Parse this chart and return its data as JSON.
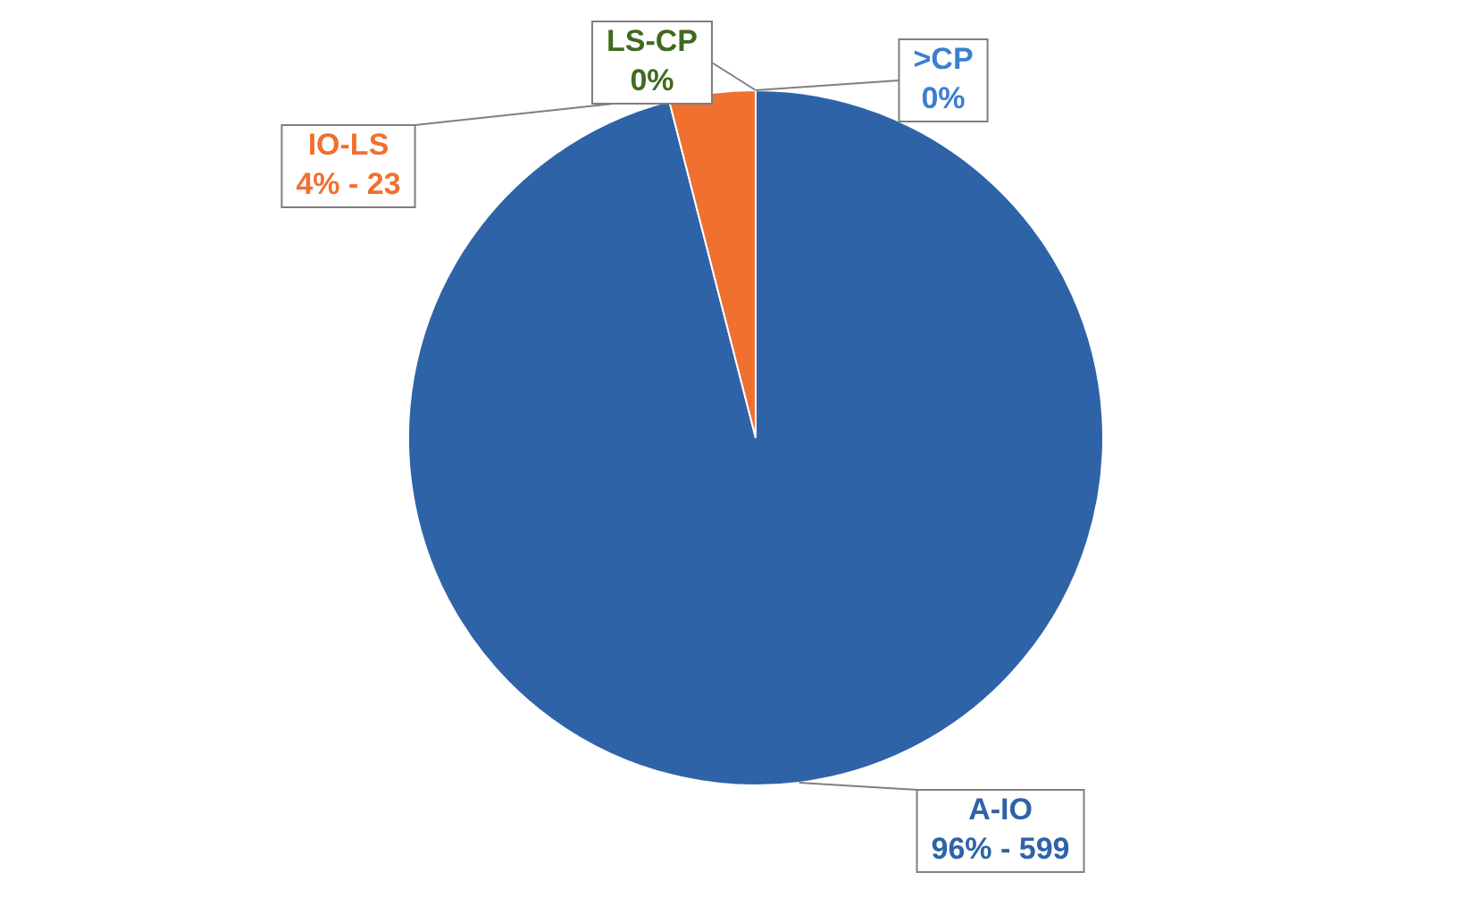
{
  "chart_data": {
    "type": "pie",
    "categories": [
      "A-IO",
      "IO-LS",
      "LS-CP",
      ">CP"
    ],
    "values": [
      96,
      4,
      0,
      0
    ],
    "value_labels": [
      "96% - 599",
      "4% - 23",
      "0%",
      "0%"
    ],
    "colors": [
      "#2e63a8",
      "#f07030",
      "#3e6b1f",
      "#3c7fd0"
    ],
    "legend": false
  }
}
